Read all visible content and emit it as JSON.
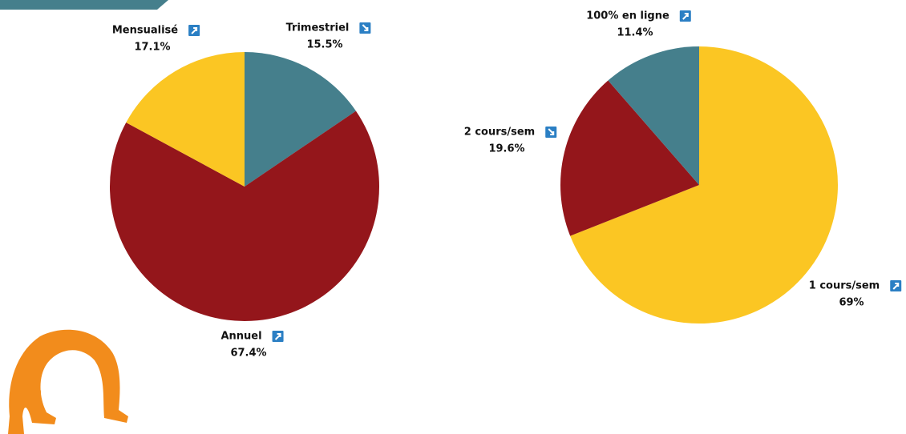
{
  "chart_data": [
    {
      "type": "pie",
      "categories": [
        "Trimestriel",
        "Annuel",
        "Mensualisé"
      ],
      "values": [
        15.5,
        67.4,
        17.1
      ],
      "value_labels": [
        "15.5%",
        "67.4%",
        "17.1%"
      ],
      "colors": [
        "#457f8c",
        "#94161b",
        "#fbc623"
      ]
    },
    {
      "type": "pie",
      "categories": [
        "1 cours/sem",
        "2 cours/sem",
        "100% en ligne"
      ],
      "values": [
        69,
        19.6,
        11.4
      ],
      "value_labels": [
        "69%",
        "19.6%",
        "11.4%"
      ],
      "colors": [
        "#fbc623",
        "#94161b",
        "#457f8c"
      ]
    }
  ]
}
